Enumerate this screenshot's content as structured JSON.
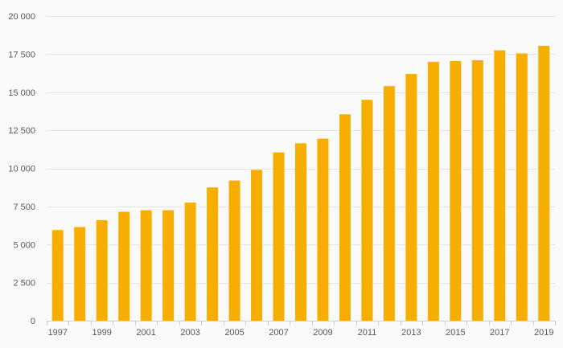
{
  "chart_data": {
    "type": "bar",
    "title": "",
    "xlabel": "",
    "ylabel": "",
    "categories": [
      "1997",
      "1998",
      "1999",
      "2000",
      "2001",
      "2002",
      "2003",
      "2004",
      "2005",
      "2006",
      "2007",
      "2008",
      "2009",
      "2010",
      "2011",
      "2012",
      "2013",
      "2014",
      "2015",
      "2016",
      "2017",
      "2018",
      "2019"
    ],
    "x_tick_labels": [
      "1997",
      "",
      "1999",
      "",
      "2001",
      "",
      "2003",
      "",
      "2005",
      "",
      "2007",
      "",
      "2009",
      "",
      "2011",
      "",
      "2013",
      "",
      "2015",
      "",
      "2017",
      "",
      "2019"
    ],
    "values": [
      5950,
      6150,
      6600,
      7150,
      7250,
      7250,
      7750,
      8750,
      9200,
      9900,
      11050,
      11650,
      11950,
      13550,
      14500,
      15400,
      16200,
      17000,
      17050,
      17100,
      17750,
      17550,
      18050
    ],
    "ylim": [
      0,
      20000
    ],
    "y_ticks": [
      0,
      2500,
      5000,
      7500,
      10000,
      12500,
      15000,
      17500,
      20000
    ],
    "y_tick_labels": [
      "0",
      "2 500",
      "5 000",
      "7 500",
      "10 000",
      "12 500",
      "15 000",
      "17 500",
      "20 000"
    ],
    "grid": true,
    "legend": "none",
    "bar_color": "#f8ae00"
  }
}
